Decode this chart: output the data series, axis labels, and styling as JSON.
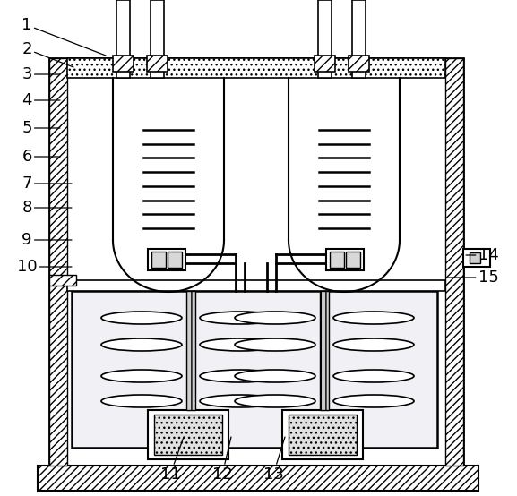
{
  "bg_color": "#ffffff",
  "lc": "#000000",
  "fig_w": 5.77,
  "fig_h": 5.54,
  "dpi": 100,
  "annotations": [
    [
      "1",
      30,
      28,
      118,
      62
    ],
    [
      "2",
      30,
      55,
      82,
      75
    ],
    [
      "3",
      30,
      83,
      67,
      83
    ],
    [
      "4",
      30,
      112,
      67,
      112
    ],
    [
      "5",
      30,
      143,
      67,
      143
    ],
    [
      "6",
      30,
      175,
      67,
      175
    ],
    [
      "7",
      30,
      205,
      80,
      205
    ],
    [
      "8",
      30,
      232,
      80,
      232
    ],
    [
      "9",
      30,
      268,
      80,
      268
    ],
    [
      "10",
      30,
      298,
      80,
      298
    ],
    [
      "11",
      190,
      530,
      205,
      488
    ],
    [
      "12",
      248,
      530,
      258,
      488
    ],
    [
      "13",
      305,
      530,
      318,
      488
    ],
    [
      "14",
      545,
      285,
      520,
      285
    ],
    [
      "15",
      545,
      310,
      500,
      310
    ]
  ]
}
